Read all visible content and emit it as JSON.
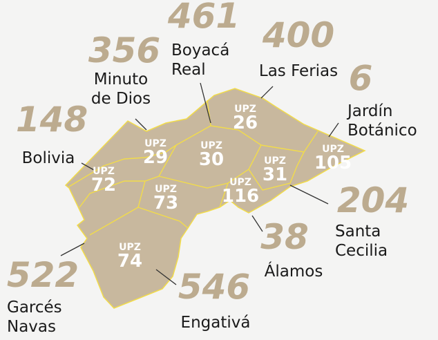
{
  "upz_label": "UPZ",
  "zones": [
    {
      "code": "26",
      "name_lines": [
        "Las Ferias"
      ],
      "count": 400
    },
    {
      "code": "29",
      "name_lines": [
        "Minuto",
        "de Dios"
      ],
      "count": 356
    },
    {
      "code": "30",
      "name_lines": [
        "Boyacá",
        "Real"
      ],
      "count": 461
    },
    {
      "code": "31",
      "name_lines": [
        "Santa",
        "Cecilia"
      ],
      "count": 204
    },
    {
      "code": "72",
      "name_lines": [
        "Bolivia"
      ],
      "count": 148
    },
    {
      "code": "73",
      "name_lines": [
        "Garcés",
        "Navas"
      ],
      "count": 522
    },
    {
      "code": "74",
      "name_lines": [
        "Engativá"
      ],
      "count": 546
    },
    {
      "code": "105",
      "name_lines": [
        "Jardín",
        "Botánico"
      ],
      "count": 6
    },
    {
      "code": "116",
      "name_lines": [
        "Álamos"
      ],
      "count": 38
    }
  ]
}
